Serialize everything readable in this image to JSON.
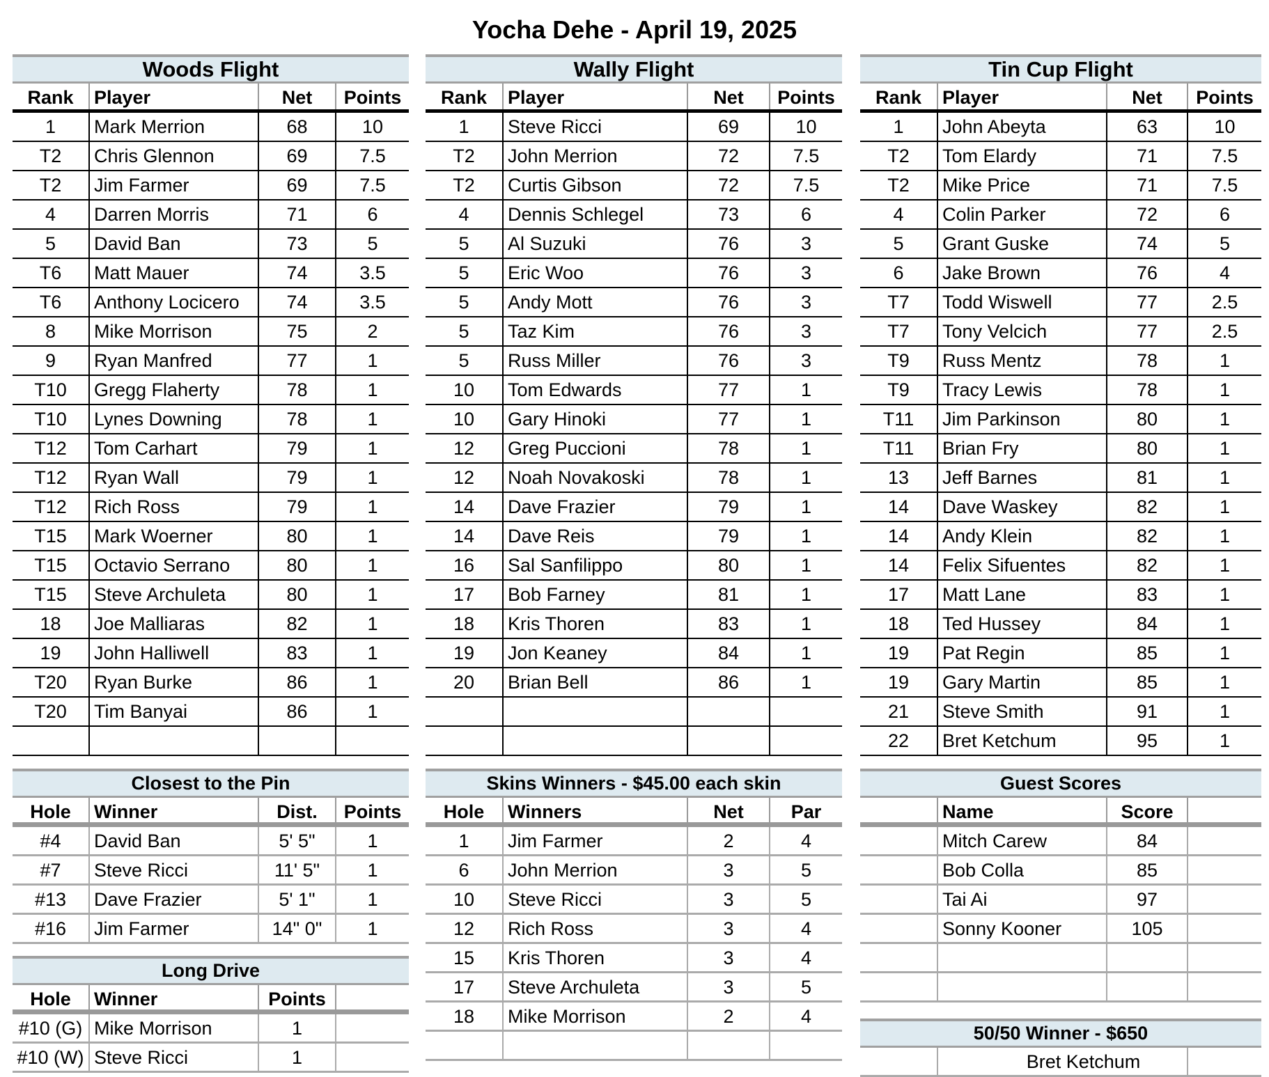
{
  "title": "Yocha Dehe - April 19, 2025",
  "flights": [
    {
      "name": "Woods Flight",
      "headers": [
        "Rank",
        "Player",
        "Net",
        "Points"
      ],
      "rows": [
        [
          "1",
          "Mark Merrion",
          "68",
          "10"
        ],
        [
          "T2",
          "Chris Glennon",
          "69",
          "7.5"
        ],
        [
          "T2",
          "Jim Farmer",
          "69",
          "7.5"
        ],
        [
          "4",
          "Darren Morris",
          "71",
          "6"
        ],
        [
          "5",
          "David Ban",
          "73",
          "5"
        ],
        [
          "T6",
          "Matt Mauer",
          "74",
          "3.5"
        ],
        [
          "T6",
          "Anthony Locicero",
          "74",
          "3.5"
        ],
        [
          "8",
          "Mike Morrison",
          "75",
          "2"
        ],
        [
          "9",
          "Ryan Manfred",
          "77",
          "1"
        ],
        [
          "T10",
          "Gregg Flaherty",
          "78",
          "1"
        ],
        [
          "T10",
          "Lynes Downing",
          "78",
          "1"
        ],
        [
          "T12",
          "Tom Carhart",
          "79",
          "1"
        ],
        [
          "T12",
          "Ryan Wall",
          "79",
          "1"
        ],
        [
          "T12",
          "Rich Ross",
          "79",
          "1"
        ],
        [
          "T15",
          "Mark Woerner",
          "80",
          "1"
        ],
        [
          "T15",
          "Octavio Serrano",
          "80",
          "1"
        ],
        [
          "T15",
          "Steve Archuleta",
          "80",
          "1"
        ],
        [
          "18",
          "Joe Malliaras",
          "82",
          "1"
        ],
        [
          "19",
          "John Halliwell",
          "83",
          "1"
        ],
        [
          "T20",
          "Ryan Burke",
          "86",
          "1"
        ],
        [
          "T20",
          "Tim Banyai",
          "86",
          "1"
        ]
      ]
    },
    {
      "name": "Wally Flight",
      "headers": [
        "Rank",
        "Player",
        "Net",
        "Points"
      ],
      "rows": [
        [
          "1",
          "Steve Ricci",
          "69",
          "10"
        ],
        [
          "T2",
          "John Merrion",
          "72",
          "7.5"
        ],
        [
          "T2",
          "Curtis Gibson",
          "72",
          "7.5"
        ],
        [
          "4",
          "Dennis Schlegel",
          "73",
          "6"
        ],
        [
          "5",
          "Al Suzuki",
          "76",
          "3"
        ],
        [
          "5",
          "Eric Woo",
          "76",
          "3"
        ],
        [
          "5",
          "Andy Mott",
          "76",
          "3"
        ],
        [
          "5",
          "Taz Kim",
          "76",
          "3"
        ],
        [
          "5",
          "Russ Miller",
          "76",
          "3"
        ],
        [
          "10",
          "Tom Edwards",
          "77",
          "1"
        ],
        [
          "10",
          "Gary Hinoki",
          "77",
          "1"
        ],
        [
          "12",
          "Greg Puccioni",
          "78",
          "1"
        ],
        [
          "12",
          "Noah Novakoski",
          "78",
          "1"
        ],
        [
          "14",
          "Dave Frazier",
          "79",
          "1"
        ],
        [
          "14",
          "Dave Reis",
          "79",
          "1"
        ],
        [
          "16",
          "Sal Sanfilippo",
          "80",
          "1"
        ],
        [
          "17",
          "Bob Farney",
          "81",
          "1"
        ],
        [
          "18",
          "Kris Thoren",
          "83",
          "1"
        ],
        [
          "19",
          "Jon Keaney",
          "84",
          "1"
        ],
        [
          "20",
          "Brian Bell",
          "86",
          "1"
        ]
      ]
    },
    {
      "name": "Tin Cup Flight",
      "headers": [
        "Rank",
        "Player",
        "Net",
        "Points"
      ],
      "rows": [
        [
          "1",
          "John Abeyta",
          "63",
          "10"
        ],
        [
          "T2",
          "Tom Elardy",
          "71",
          "7.5"
        ],
        [
          "T2",
          "Mike Price",
          "71",
          "7.5"
        ],
        [
          "4",
          "Colin Parker",
          "72",
          "6"
        ],
        [
          "5",
          "Grant Guske",
          "74",
          "5"
        ],
        [
          "6",
          "Jake Brown",
          "76",
          "4"
        ],
        [
          "T7",
          "Todd Wiswell",
          "77",
          "2.5"
        ],
        [
          "T7",
          "Tony Velcich",
          "77",
          "2.5"
        ],
        [
          "T9",
          "Russ Mentz",
          "78",
          "1"
        ],
        [
          "T9",
          "Tracy Lewis",
          "78",
          "1"
        ],
        [
          "T11",
          "Jim Parkinson",
          "80",
          "1"
        ],
        [
          "T11",
          "Brian Fry",
          "80",
          "1"
        ],
        [
          "13",
          "Jeff Barnes",
          "81",
          "1"
        ],
        [
          "14",
          "Dave Waskey",
          "82",
          "1"
        ],
        [
          "14",
          "Andy Klein",
          "82",
          "1"
        ],
        [
          "14",
          "Felix Sifuentes",
          "82",
          "1"
        ],
        [
          "17",
          "Matt Lane",
          "83",
          "1"
        ],
        [
          "18",
          "Ted Hussey",
          "84",
          "1"
        ],
        [
          "19",
          "Pat Regin",
          "85",
          "1"
        ],
        [
          "19",
          "Gary Martin",
          "85",
          "1"
        ],
        [
          "21",
          "Steve Smith",
          "91",
          "1"
        ],
        [
          "22",
          "Bret Ketchum",
          "95",
          "1"
        ]
      ]
    }
  ],
  "closest_to_pin": {
    "name": "Closest to the Pin",
    "headers": [
      "Hole",
      "Winner",
      "Dist.",
      "Points"
    ],
    "rows": [
      [
        "#4",
        "David Ban",
        "5' 5\"",
        "1"
      ],
      [
        "#7",
        "Steve Ricci",
        "11' 5\"",
        "1"
      ],
      [
        "#13",
        "Dave Frazier",
        "5' 1\"",
        "1"
      ],
      [
        "#16",
        "Jim Farmer",
        "14\" 0\"",
        "1"
      ]
    ]
  },
  "long_drive": {
    "name": "Long Drive",
    "headers": [
      "Hole",
      "Winner",
      "Points",
      ""
    ],
    "rows": [
      [
        "#10 (G)",
        "Mike Morrison",
        "1",
        ""
      ],
      [
        "#10 (W)",
        "Steve Ricci",
        "1",
        ""
      ]
    ]
  },
  "skins": {
    "name": "Skins Winners - $45.00 each skin",
    "headers": [
      "Hole",
      "Winners",
      "Net",
      "Par"
    ],
    "rows": [
      [
        "1",
        "Jim Farmer",
        "2",
        "4"
      ],
      [
        "6",
        "John Merrion",
        "3",
        "5"
      ],
      [
        "10",
        "Steve Ricci",
        "3",
        "5"
      ],
      [
        "12",
        "Rich Ross",
        "3",
        "4"
      ],
      [
        "15",
        "Kris Thoren",
        "3",
        "4"
      ],
      [
        "17",
        "Steve Archuleta",
        "3",
        "5"
      ],
      [
        "18",
        "Mike Morrison",
        "2",
        "4"
      ]
    ]
  },
  "guests": {
    "name": "Guest Scores",
    "headers": [
      "",
      "Name",
      "Score",
      ""
    ],
    "rows": [
      [
        "",
        "Mitch Carew",
        "84",
        ""
      ],
      [
        "",
        "Bob Colla",
        "85",
        ""
      ],
      [
        "",
        "Tai Ai",
        "97",
        ""
      ],
      [
        "",
        "Sonny Kooner",
        "105",
        ""
      ]
    ]
  },
  "fifty_fifty": {
    "name": "50/50 Winner - $650",
    "winner": "Bret Ketchum"
  },
  "colors": {
    "band": "#deeaf0"
  }
}
